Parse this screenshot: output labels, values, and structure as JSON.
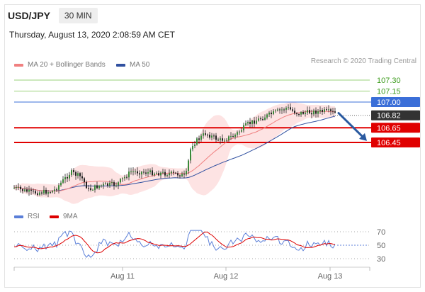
{
  "header": {
    "symbol": "USD/JPY",
    "timeframe": "30 MIN"
  },
  "timestamp": "Thursday, August 13, 2020 2:08:59 AM CET",
  "legend": {
    "price": [
      {
        "label": "MA 20 + Bollinger Bands",
        "color": "#f08080"
      },
      {
        "label": "MA 50",
        "color": "#3050a0"
      }
    ],
    "rsi": [
      {
        "label": "RSI",
        "color": "#5b7fd8"
      },
      {
        "label": "9MA",
        "color": "#dd0000"
      }
    ]
  },
  "credit": "Research © 2020 Trading Central",
  "chart_data": {
    "type": "candlestick",
    "x_ticks": [
      "Aug 11",
      "Aug 12",
      "Aug 13"
    ],
    "price_range": [
      105.5,
      107.35
    ],
    "levels": [
      {
        "value": 107.3,
        "label": "107.30",
        "kind": "resistance"
      },
      {
        "value": 107.15,
        "label": "107.15",
        "kind": "resistance"
      },
      {
        "value": 107.0,
        "label": "107.00",
        "kind": "resistance-pivot"
      },
      {
        "value": 106.82,
        "label": "106.82",
        "kind": "last-price"
      },
      {
        "value": 106.65,
        "label": "106.65",
        "kind": "support"
      },
      {
        "value": 106.45,
        "label": "106.45",
        "kind": "support"
      }
    ],
    "projection": {
      "from": 106.85,
      "to": 106.47,
      "direction": "down"
    },
    "rsi": {
      "levels": [
        70,
        50,
        30
      ],
      "range": [
        20,
        80
      ]
    }
  }
}
